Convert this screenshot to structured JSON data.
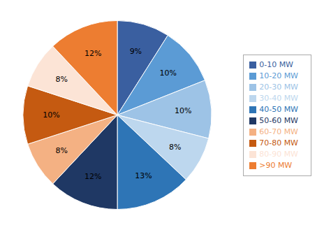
{
  "chart_data": {
    "type": "pie",
    "categories": [
      "0-10 MW",
      "10-20 MW",
      "20-30 MW",
      "30-40 MW",
      "40-50 MW",
      "50-60 MW",
      "60-70 MW",
      "70-80 MW",
      "80-90 MW",
      ">90 MW"
    ],
    "values": [
      9,
      10,
      10,
      8,
      13,
      12,
      8,
      10,
      8,
      12
    ],
    "value_labels": [
      "9%",
      "10%",
      "10%",
      "8%",
      "13%",
      "12%",
      "8%",
      "10%",
      "8%",
      "12%"
    ],
    "colors": [
      "#3A5FA0",
      "#5B9BD5",
      "#9DC3E6",
      "#BDD7EE",
      "#2E75B6",
      "#1F3864",
      "#F4B183",
      "#C55A11",
      "#FCE4D6",
      "#ED7D31"
    ],
    "data_labels": true,
    "legend": "right"
  }
}
